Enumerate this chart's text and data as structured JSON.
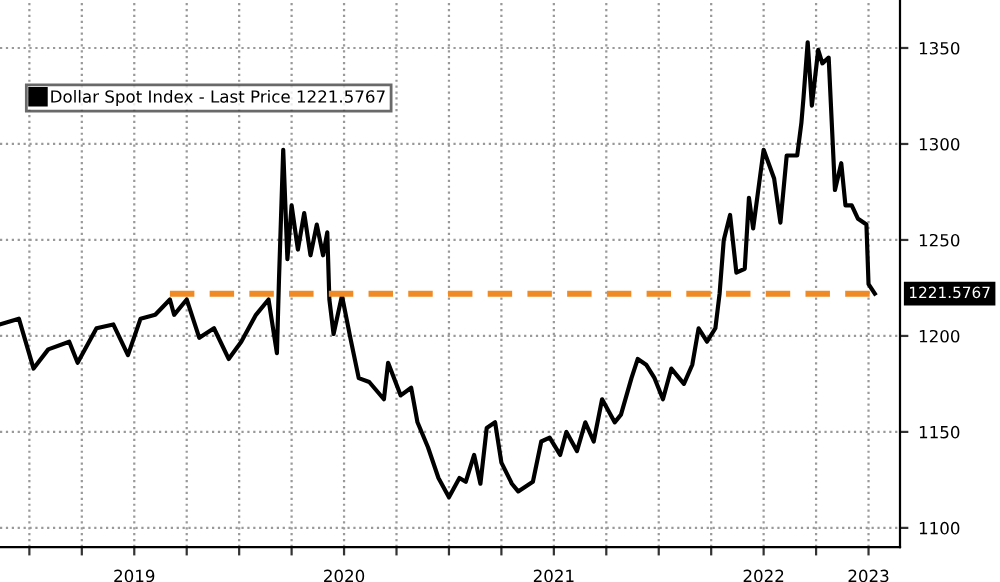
{
  "chart_data": {
    "type": "line",
    "legend": "top left",
    "grid": true,
    "line_style": "solid",
    "marker": "none",
    "xlim": [
      2018.86,
      2023.15
    ],
    "ylim": [
      1090,
      1375
    ],
    "xticks": [
      {
        "value": 2019.0,
        "label": null
      },
      {
        "value": 2019.25,
        "label": null
      },
      {
        "value": 2019.5,
        "label": "2019"
      },
      {
        "value": 2019.75,
        "label": null
      },
      {
        "value": 2020.0,
        "label": null
      },
      {
        "value": 2020.25,
        "label": null
      },
      {
        "value": 2020.5,
        "label": "2020"
      },
      {
        "value": 2020.75,
        "label": null
      },
      {
        "value": 2021.0,
        "label": null
      },
      {
        "value": 2021.25,
        "label": null
      },
      {
        "value": 2021.5,
        "label": "2021"
      },
      {
        "value": 2021.75,
        "label": null
      },
      {
        "value": 2022.0,
        "label": null
      },
      {
        "value": 2022.25,
        "label": null
      },
      {
        "value": 2022.5,
        "label": "2022"
      },
      {
        "value": 2022.75,
        "label": null
      },
      {
        "value": 2023.0,
        "label": "2023"
      }
    ],
    "yticks": [
      1100,
      1150,
      1200,
      1250,
      1300,
      1350
    ],
    "series": [
      {
        "name": "Dollar Spot Index - Last Price 1221.5767",
        "color": "#000000",
        "x": [
          2018.86,
          2018.95,
          2019.02,
          2019.09,
          2019.19,
          2019.23,
          2019.32,
          2019.4,
          2019.47,
          2019.53,
          2019.6,
          2019.67,
          2019.69,
          2019.75,
          2019.81,
          2019.88,
          2019.95,
          2020.01,
          2020.08,
          2020.14,
          2020.18,
          2020.19,
          2020.21,
          2020.23,
          2020.25,
          2020.28,
          2020.31,
          2020.34,
          2020.37,
          2020.4,
          2020.42,
          2020.43,
          2020.45,
          2020.49,
          2020.53,
          2020.57,
          2020.62,
          2020.69,
          2020.71,
          2020.77,
          2020.82,
          2020.85,
          2020.9,
          2020.95,
          2021.0,
          2021.05,
          2021.08,
          2021.12,
          2021.15,
          2021.18,
          2021.22,
          2021.25,
          2021.3,
          2021.33,
          2021.4,
          2021.44,
          2021.48,
          2021.53,
          2021.56,
          2021.61,
          2021.65,
          2021.69,
          2021.73,
          2021.79,
          2021.82,
          2021.87,
          2021.9,
          2021.94,
          2021.98,
          2022.02,
          2022.06,
          2022.12,
          2022.16,
          2022.19,
          2022.23,
          2022.27,
          2022.29,
          2022.31,
          2022.34,
          2022.37,
          2022.41,
          2022.43,
          2022.45,
          2022.5,
          2022.55,
          2022.58,
          2022.61,
          2022.66,
          2022.68,
          2022.69,
          2022.71,
          2022.73,
          2022.76,
          2022.78,
          2022.81,
          2022.84,
          2022.87,
          2022.89,
          2022.92,
          2022.95,
          2022.99,
          2023.0,
          2023.03
        ],
        "values": [
          1206,
          1209,
          1183,
          1193,
          1197,
          1186,
          1204,
          1206,
          1190,
          1209,
          1211,
          1219,
          1211,
          1219,
          1199,
          1204,
          1188,
          1197,
          1211,
          1219,
          1191,
          1230,
          1297,
          1240,
          1268,
          1245,
          1264,
          1242,
          1258,
          1242,
          1254,
          1219,
          1201,
          1221,
          1199,
          1178,
          1176,
          1167,
          1186,
          1169,
          1173,
          1155,
          1142,
          1126,
          1116,
          1126,
          1124,
          1138,
          1123,
          1152,
          1155,
          1134,
          1123,
          1119,
          1124,
          1145,
          1147,
          1138,
          1150,
          1140,
          1155,
          1145,
          1167,
          1155,
          1159,
          1178,
          1188,
          1185,
          1178,
          1167,
          1183,
          1175,
          1185,
          1204,
          1197,
          1204,
          1222,
          1250,
          1263,
          1233,
          1235,
          1272,
          1256,
          1297,
          1282,
          1259,
          1294,
          1294,
          1311,
          1324,
          1353,
          1320,
          1349,
          1342,
          1345,
          1276,
          1290,
          1268,
          1268,
          1261,
          1258,
          1227,
          1222
        ]
      },
      {
        "color": "#f08a24",
        "line_style": "dashed",
        "x": [
          2019.67,
          2023.03
        ],
        "values": [
          1222,
          1222
        ]
      }
    ],
    "annotations": [
      "1221.5767"
    ]
  }
}
